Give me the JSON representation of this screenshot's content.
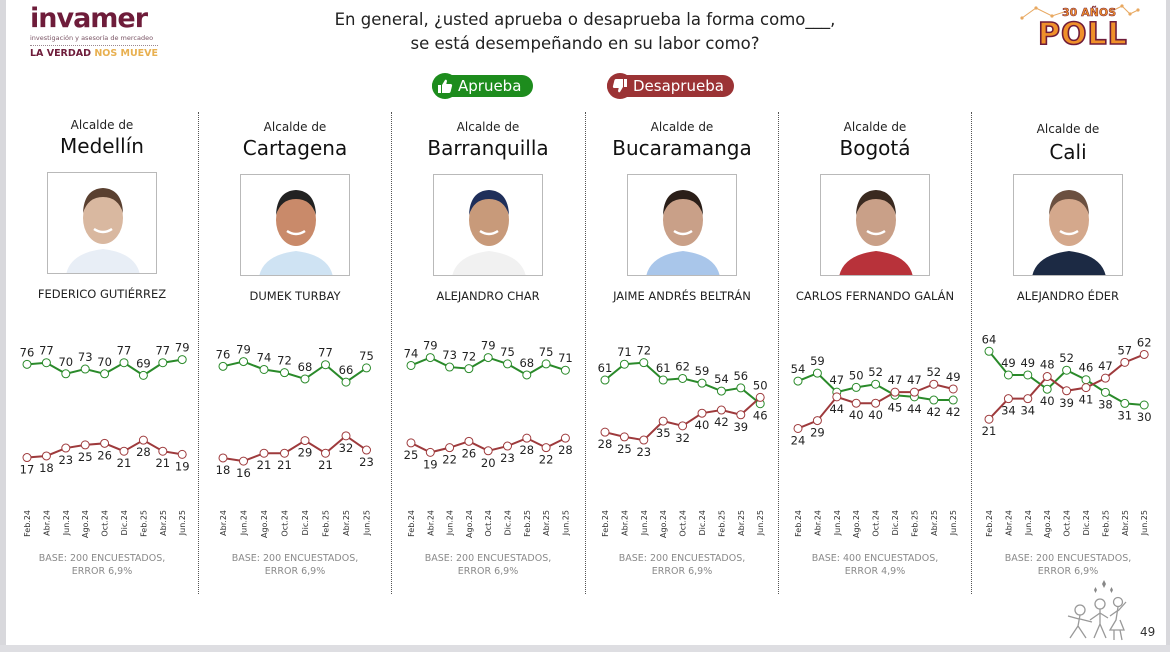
{
  "logo": {
    "brand": "invamer",
    "subtitle": "investigación y asesoría de mercadeo",
    "tagline_a": "LA VERDAD",
    "tagline_b": "NOS MUEVE"
  },
  "badge": {
    "years": "30 AÑOS",
    "word": "POLL"
  },
  "question": {
    "line1": "En general, ¿usted aprueba o desaprueba la forma como___,",
    "line2": "se está desempeñando en su labor como?"
  },
  "legend": {
    "approve": "Aprueba",
    "disapprove": "Desaprueba",
    "approve_icon": "thumbs-up-icon",
    "disapprove_icon": "thumbs-down-icon"
  },
  "colors": {
    "approve": "#2a8a2a",
    "disapprove": "#9e3a3c",
    "approve_pill": "#1d8c1d",
    "disapprove_pill": "#9b3335"
  },
  "page_number": "49",
  "chart_data": [
    {
      "type": "line",
      "title": "Alcalde de Medellín",
      "prefix": "Alcalde de",
      "city": "Medellín",
      "person": "FEDERICO GUTIÉRREZ",
      "photo_tone": "#d9b8a0",
      "x": [
        "Feb.24",
        "Abr.24",
        "Jun.24",
        "Ago.24",
        "Oct.24",
        "Dic.24",
        "Feb.25",
        "Abr.25",
        "Jun.25"
      ],
      "series": [
        {
          "name": "Aprueba",
          "values": [
            76,
            77,
            70,
            73,
            70,
            77,
            69,
            77,
            79
          ]
        },
        {
          "name": "Desaprueba",
          "values": [
            17,
            18,
            23,
            25,
            26,
            21,
            28,
            21,
            19
          ]
        }
      ],
      "ylim": [
        0,
        100
      ],
      "base_line1": "BASE: 200 ENCUESTADOS,",
      "base_line2": "ERROR 6,9%"
    },
    {
      "type": "line",
      "title": "Alcalde de Cartagena",
      "prefix": "Alcalde de",
      "city": "Cartagena",
      "person": "DUMEK TURBAY",
      "photo_tone": "#c98a6a",
      "x": [
        "Abr.24",
        "Jun.24",
        "Ago.24",
        "Oct.24",
        "Dic.24",
        "Feb.25",
        "Abr.25",
        "Jun.25"
      ],
      "series": [
        {
          "name": "Aprueba",
          "values": [
            76,
            79,
            74,
            72,
            68,
            77,
            66,
            75
          ]
        },
        {
          "name": "Desaprueba",
          "values": [
            18,
            16,
            21,
            21,
            29,
            21,
            32,
            23
          ]
        }
      ],
      "ylim": [
        0,
        100
      ],
      "base_line1": "BASE: 200 ENCUESTADOS,",
      "base_line2": "ERROR 6,9%"
    },
    {
      "type": "line",
      "title": "Alcalde de Barranquilla",
      "prefix": "Alcalde de",
      "city": "Barranquilla",
      "person": "ALEJANDRO CHAR",
      "photo_tone": "#c89a7a",
      "x": [
        "Feb.24",
        "Abr.24",
        "Jun.24",
        "Ago.24",
        "Oct.24",
        "Dic.24",
        "Feb.25",
        "Abr.25",
        "Jun.25"
      ],
      "series": [
        {
          "name": "Aprueba",
          "values": [
            74,
            79,
            73,
            72,
            79,
            75,
            68,
            75,
            71
          ]
        },
        {
          "name": "Desaprueba",
          "values": [
            25,
            19,
            22,
            26,
            20,
            23,
            28,
            22,
            28
          ]
        }
      ],
      "ylim": [
        0,
        100
      ],
      "base_line1": "BASE: 200 ENCUESTADOS,",
      "base_line2": "ERROR 6,9%"
    },
    {
      "type": "line",
      "title": "Alcalde de Bucaramanga",
      "prefix": "Alcalde de",
      "city": "Bucaramanga",
      "person": "JAIME ANDRÉS BELTRÁN",
      "photo_tone": "#c9a088",
      "x": [
        "Feb.24",
        "Abr.24",
        "Jun.24",
        "Ago.24",
        "Oct.24",
        "Dic.24",
        "Feb.25",
        "Abr.25",
        "Jun.25"
      ],
      "series": [
        {
          "name": "Aprueba",
          "values": [
            61,
            71,
            72,
            61,
            62,
            59,
            54,
            56,
            46
          ]
        },
        {
          "name": "Desaprueba",
          "values": [
            28,
            25,
            23,
            35,
            32,
            40,
            42,
            39,
            50
          ]
        }
      ],
      "ylim": [
        0,
        100
      ],
      "base_line1": "BASE: 200 ENCUESTADOS,",
      "base_line2": "ERROR 6,9%"
    },
    {
      "type": "line",
      "title": "Alcalde de Bogotá",
      "prefix": "Alcalde de",
      "city": "Bogotá",
      "person": "CARLOS FERNANDO GALÁN",
      "photo_tone": "#c9a088",
      "x": [
        "Feb.24",
        "Abr.24",
        "Jun.24",
        "Ago.24",
        "Oct.24",
        "Dic.24",
        "Feb.25",
        "Abr.25",
        "Jun.25"
      ],
      "series": [
        {
          "name": "Aprueba",
          "values": [
            54,
            59,
            47,
            50,
            52,
            45,
            44,
            42,
            42
          ]
        },
        {
          "name": "Desaprueba",
          "values": [
            24,
            29,
            44,
            40,
            40,
            47,
            47,
            52,
            49
          ]
        }
      ],
      "ylim": [
        0,
        100
      ],
      "base_line1": "BASE: 400 ENCUESTADOS,",
      "base_line2": "ERROR 4,9%"
    },
    {
      "type": "line",
      "title": "Alcalde de Cali",
      "prefix": "Alcalde de",
      "city": "Cali",
      "person": "ALEJANDRO ÉDER",
      "photo_tone": "#d4a88c",
      "x": [
        "Feb.24",
        "Abr.24",
        "Jun.24",
        "Ago.24",
        "Oct.24",
        "Dic.24",
        "Feb.25",
        "Abr.25",
        "Jun.25"
      ],
      "series": [
        {
          "name": "Aprueba",
          "values": [
            64,
            49,
            49,
            40,
            52,
            46,
            38,
            31,
            30
          ]
        },
        {
          "name": "Desaprueba",
          "values": [
            21,
            34,
            34,
            48,
            39,
            41,
            47,
            57,
            62
          ]
        }
      ],
      "ylim": [
        0,
        100
      ],
      "base_line1": "BASE: 200 ENCUESTADOS,",
      "base_line2": "ERROR 6,9%"
    }
  ]
}
